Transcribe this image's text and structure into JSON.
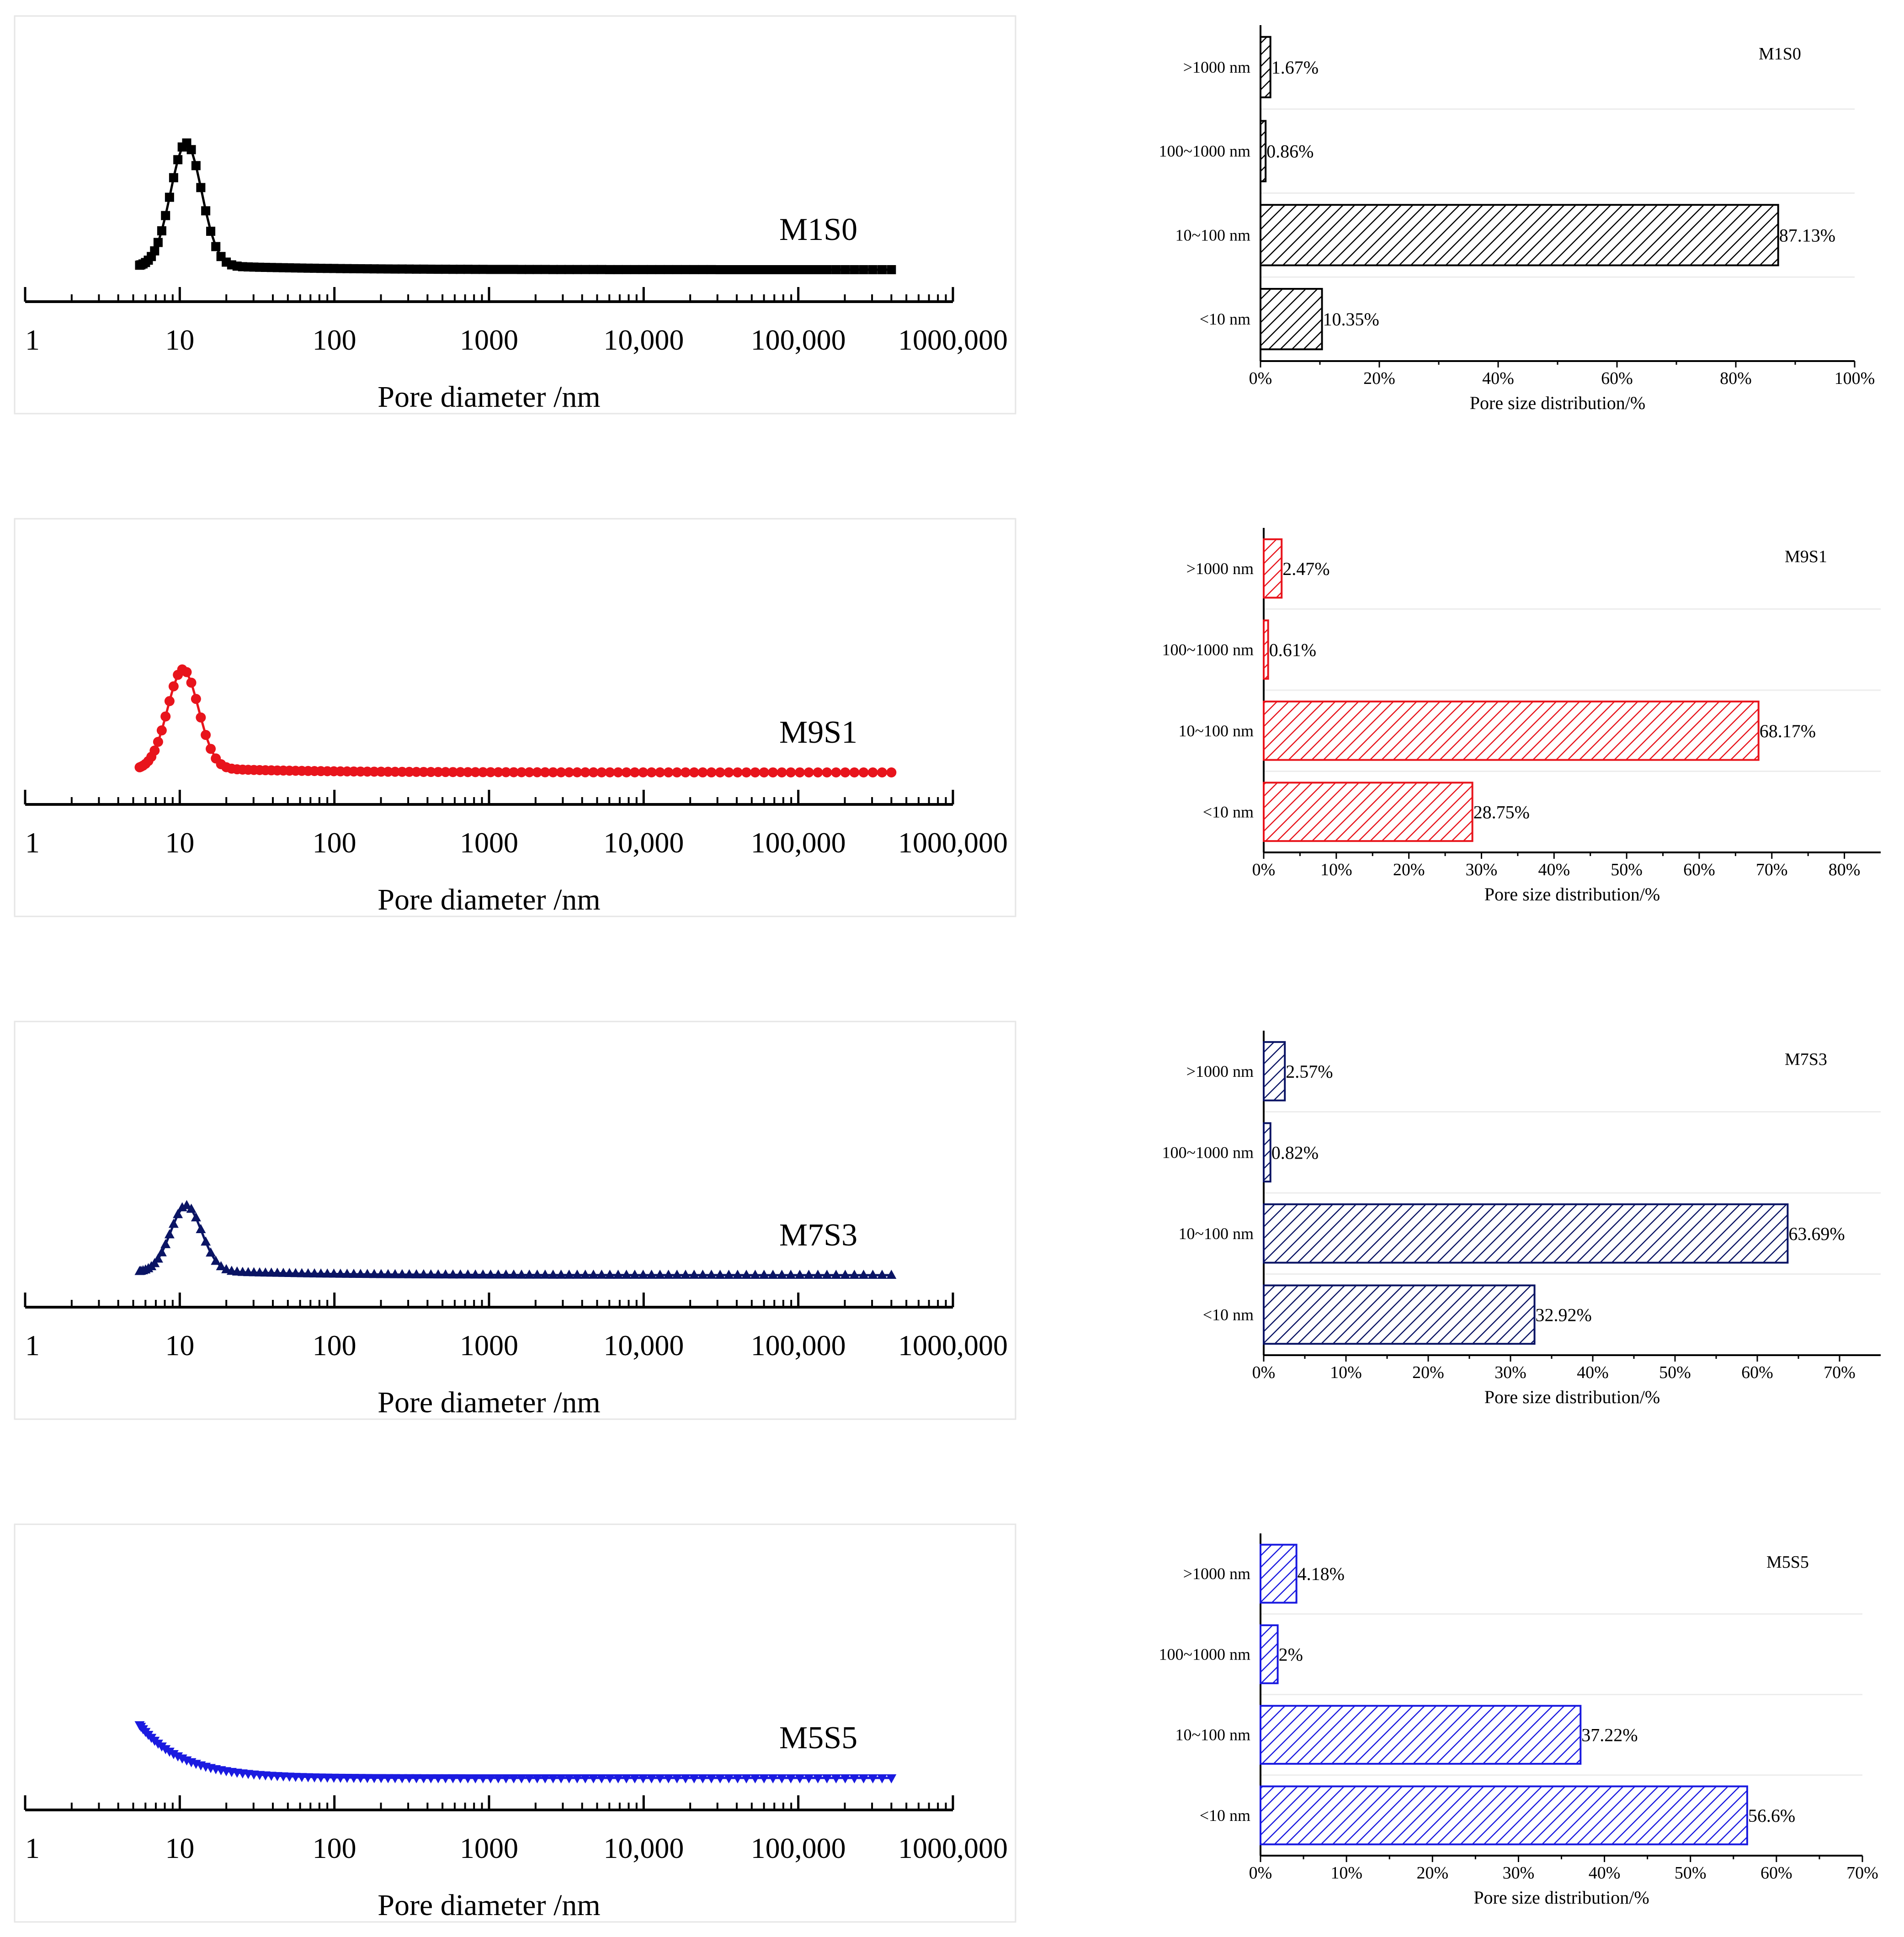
{
  "figure": {
    "description_free": true
  },
  "chart_data": [
    {
      "type": "line",
      "panel": "left",
      "sample": "M1S0",
      "label": "M1S0",
      "color": "#000000",
      "marker": "square",
      "xlabel": "Pore diameter /nm",
      "x_scale": "log",
      "xlim": [
        1,
        1000000
      ],
      "x_ticks": [
        1,
        10,
        100,
        1000,
        10000,
        100000,
        1000000
      ],
      "x_tick_labels": [
        "1",
        "10",
        "100",
        "1000",
        "10,000",
        "100,000",
        "1000,000"
      ],
      "ylim": [
        0,
        1.0
      ],
      "y_axis_visible": false,
      "peak": {
        "x": 11,
        "y": 0.62
      },
      "baseline": 0.0
    },
    {
      "type": "line",
      "panel": "left",
      "sample": "M9S1",
      "label": "M9S1",
      "color": "#e8141c",
      "marker": "circle",
      "xlabel": "Pore diameter /nm",
      "x_scale": "log",
      "xlim": [
        1,
        1000000
      ],
      "x_ticks": [
        1,
        10,
        100,
        1000,
        10000,
        100000,
        1000000
      ],
      "x_tick_labels": [
        "1",
        "10",
        "100",
        "1000",
        "10,000",
        "100,000",
        "1000,000"
      ],
      "ylim": [
        0,
        1.0
      ],
      "y_axis_visible": false,
      "peak": {
        "x": 10.5,
        "y": 0.5
      },
      "baseline": 0.0
    },
    {
      "type": "line",
      "panel": "left",
      "sample": "M7S3",
      "label": "M7S3",
      "color": "#0a1464",
      "marker": "triangle-up",
      "xlabel": "Pore diameter /nm",
      "x_scale": "log",
      "xlim": [
        1,
        1000000
      ],
      "x_ticks": [
        1,
        10,
        100,
        1000,
        10000,
        100000,
        1000000
      ],
      "x_tick_labels": [
        "1",
        "10",
        "100",
        "1000",
        "10,000",
        "100,000",
        "1000,000"
      ],
      "ylim": [
        0,
        1.0
      ],
      "y_axis_visible": false,
      "peak": {
        "x": 11,
        "y": 0.33
      },
      "baseline": 0.0
    },
    {
      "type": "line",
      "panel": "left",
      "sample": "M5S5",
      "label": "M5S5",
      "color": "#1a1ae0",
      "marker": "triangle-down",
      "xlabel": "Pore diameter /nm",
      "x_scale": "log",
      "xlim": [
        1,
        1000000
      ],
      "x_ticks": [
        1,
        10,
        100,
        1000,
        10000,
        100000,
        1000000
      ],
      "x_tick_labels": [
        "1",
        "10",
        "100",
        "1000",
        "10,000",
        "100,000",
        "1000,000"
      ],
      "ylim": [
        0,
        1.0
      ],
      "y_axis_visible": false,
      "peak": {
        "x": 5.5,
        "y": 0.27
      },
      "baseline": 0.0
    },
    {
      "type": "bar",
      "orientation": "horizontal",
      "panel": "right",
      "title": "M1S0",
      "color": "#000000",
      "hatch": "diagonal",
      "categories": [
        ">1000 nm",
        "100~1000 nm",
        "10~100 nm",
        "<10 nm"
      ],
      "values": [
        1.67,
        0.86,
        87.13,
        10.35
      ],
      "value_labels": [
        "1.67%",
        "0.86%",
        "87.13%",
        "10.35%"
      ],
      "xlabel": "Pore size distribution/%",
      "xlim": [
        0,
        100
      ],
      "x_tick_labels": [
        "0%",
        "20%",
        "40%",
        "60%",
        "80%",
        "100%"
      ]
    },
    {
      "type": "bar",
      "orientation": "horizontal",
      "panel": "right",
      "title": "M9S1",
      "color": "#e8141c",
      "hatch": "diagonal",
      "categories": [
        ">1000 nm",
        "100~1000 nm",
        "10~100 nm",
        "<10 nm"
      ],
      "values": [
        2.47,
        0.61,
        68.17,
        28.75
      ],
      "value_labels": [
        "2.47%",
        "0.61%",
        "68.17%",
        "28.75%"
      ],
      "xlabel": "Pore size distribution/%",
      "xlim": [
        0,
        85
      ],
      "x_tick_labels": [
        "0%",
        "10%",
        "20%",
        "30%",
        "40%",
        "50%",
        "60%",
        "70%",
        "80%"
      ]
    },
    {
      "type": "bar",
      "orientation": "horizontal",
      "panel": "right",
      "title": "M7S3",
      "color": "#0a1464",
      "hatch": "diagonal",
      "categories": [
        ">1000 nm",
        "100~1000 nm",
        "10~100 nm",
        "<10 nm"
      ],
      "values": [
        2.57,
        0.82,
        63.69,
        32.92
      ],
      "value_labels": [
        "2.57%",
        "0.82%",
        "63.69%",
        "32.92%"
      ],
      "xlabel": "Pore size distribution/%",
      "xlim": [
        0,
        75
      ],
      "x_tick_labels": [
        "0%",
        "10%",
        "20%",
        "30%",
        "40%",
        "50%",
        "60%",
        "70%"
      ]
    },
    {
      "type": "bar",
      "orientation": "horizontal",
      "panel": "right",
      "title": "M5S5",
      "color": "#1a1ae0",
      "hatch": "diagonal",
      "categories": [
        ">1000 nm",
        "100~1000 nm",
        "10~100 nm",
        "<10 nm"
      ],
      "values": [
        4.18,
        2,
        37.22,
        56.6
      ],
      "value_labels": [
        "4.18%",
        "2%",
        "37.22%",
        "56.6%"
      ],
      "xlabel": "Pore size distribution/%",
      "xlim": [
        0,
        70
      ],
      "x_tick_labels": [
        "0%",
        "10%",
        "20%",
        "30%",
        "40%",
        "50%",
        "60%",
        "70%"
      ]
    }
  ]
}
